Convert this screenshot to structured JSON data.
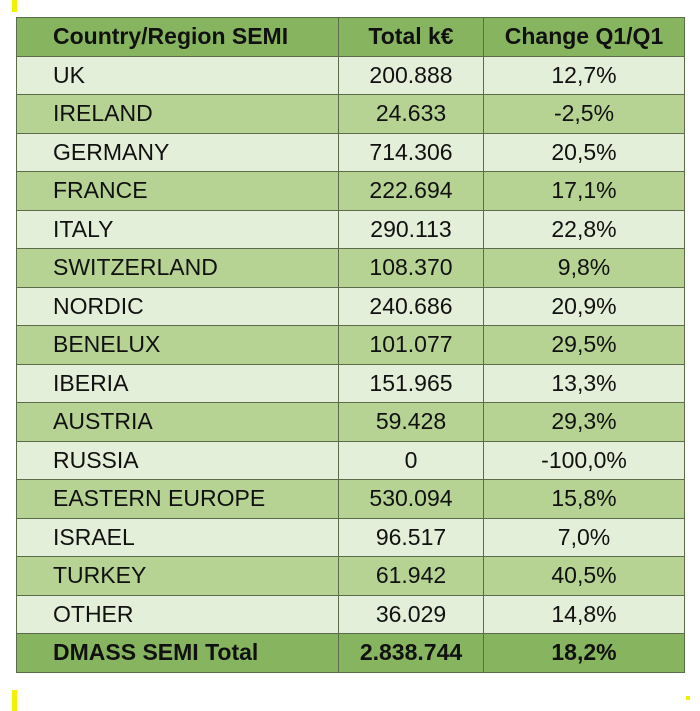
{
  "table": {
    "headers": {
      "country": "Country/Region SEMI",
      "total": "Total k€",
      "change": "Change Q1/Q1"
    },
    "rows": [
      {
        "country": "UK",
        "total": "200.888",
        "change": "12,7%"
      },
      {
        "country": "IRELAND",
        "total": "24.633",
        "change": "-2,5%"
      },
      {
        "country": "GERMANY",
        "total": "714.306",
        "change": "20,5%"
      },
      {
        "country": "FRANCE",
        "total": "222.694",
        "change": "17,1%"
      },
      {
        "country": "ITALY",
        "total": "290.113",
        "change": "22,8%"
      },
      {
        "country": "SWITZERLAND",
        "total": "108.370",
        "change": "9,8%"
      },
      {
        "country": "NORDIC",
        "total": "240.686",
        "change": "20,9%"
      },
      {
        "country": "BENELUX",
        "total": "101.077",
        "change": "29,5%"
      },
      {
        "country": "IBERIA",
        "total": "151.965",
        "change": "13,3%"
      },
      {
        "country": "AUSTRIA",
        "total": "59.428",
        "change": "29,3%"
      },
      {
        "country": "RUSSIA",
        "total": "0",
        "change": "-100,0%"
      },
      {
        "country": "EASTERN EUROPE",
        "total": "530.094",
        "change": "15,8%"
      },
      {
        "country": "ISRAEL",
        "total": "96.517",
        "change": "7,0%"
      },
      {
        "country": "TURKEY",
        "total": "61.942",
        "change": "40,5%"
      },
      {
        "country": "OTHER",
        "total": "36.029",
        "change": "14,8%"
      }
    ],
    "total_row": {
      "country": "DMASS SEMI Total",
      "total": "2.838.744",
      "change": "18,2%"
    }
  },
  "colors": {
    "header_green": "#87b55f",
    "band_dark": "#b6d393",
    "band_light": "#e4efd9",
    "border": "#5c6b4a",
    "edge_marker_yellow": "#f2f200"
  }
}
